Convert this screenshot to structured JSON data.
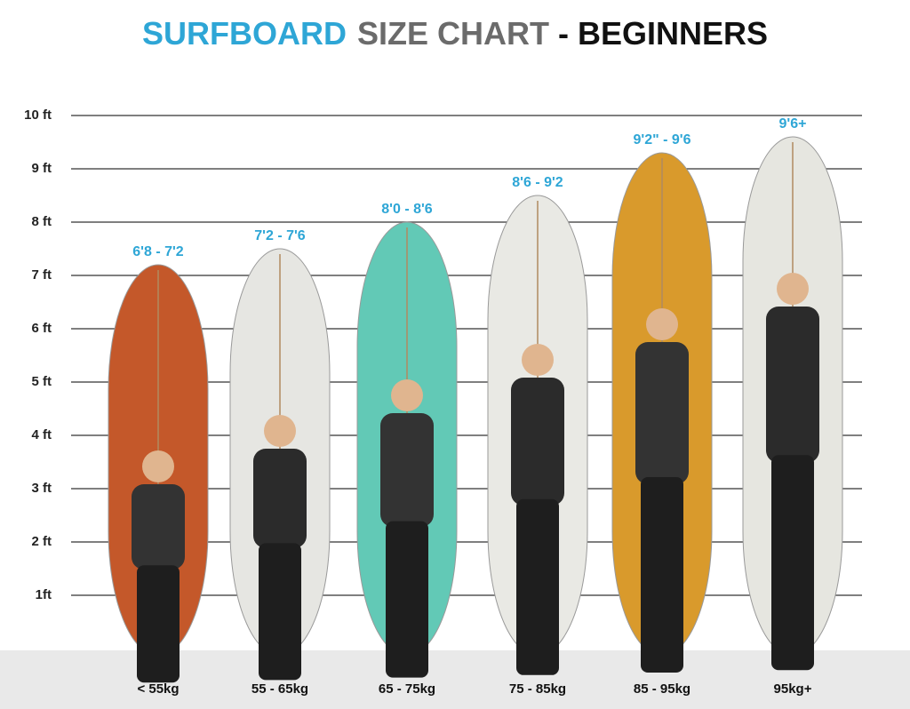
{
  "chart_data": {
    "type": "bar",
    "title_parts": [
      "SURFBOARD",
      "SIZE CHART",
      "- BEGINNERS"
    ],
    "title_colors": [
      "#2ea6d6",
      "#6b6b6b",
      "#111111"
    ],
    "categories": [
      "< 55kg",
      "55 - 65kg",
      "65 - 75kg",
      "75 - 85kg",
      "85 - 95kg",
      "95kg+"
    ],
    "size_labels": [
      "6'8 - 7'2",
      "7'2 - 7'6",
      "8'0 - 8'6",
      "8'6 - 9'2",
      "9'2\" - 9'6",
      "9'6+"
    ],
    "values": [
      7.2,
      7.5,
      8.0,
      8.5,
      9.3,
      9.6
    ],
    "colors": [
      "#c4582a",
      "#e6e6e2",
      "#62c9b6",
      "#e9e9e4",
      "#d99a2c",
      "#e6e6e0"
    ],
    "ylim": [
      0,
      10
    ],
    "yticks": [
      {
        "value": 1,
        "label": "1ft"
      },
      {
        "value": 2,
        "label": "2 ft"
      },
      {
        "value": 3,
        "label": "3 ft"
      },
      {
        "value": 4,
        "label": "4 ft"
      },
      {
        "value": 5,
        "label": "5 ft"
      },
      {
        "value": 6,
        "label": "6 ft"
      },
      {
        "value": 7,
        "label": "7 ft"
      },
      {
        "value": 8,
        "label": "8 ft"
      },
      {
        "value": 9,
        "label": "9 ft"
      },
      {
        "value": 10,
        "label": "10 ft"
      }
    ],
    "grid": true
  }
}
